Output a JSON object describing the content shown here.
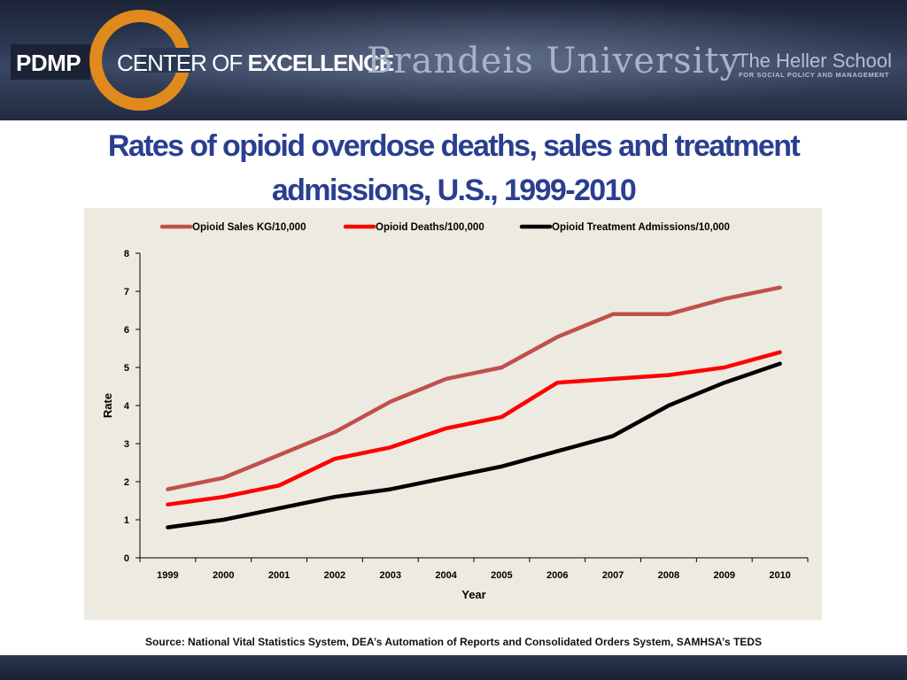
{
  "header": {
    "pdmp": "PDMP",
    "center_of": "CENTER OF ",
    "excellence": "EXCELLENCE",
    "university": "Brandeis University",
    "school": "The Heller School",
    "school_sub": "FOR SOCIAL POLICY AND MANAGEMENT",
    "logo_color": "#e08a1e"
  },
  "title": "Rates of opioid overdose deaths, sales and treatment admissions,  U.S., 1999-2010",
  "source": "Source:  National Vital Statistics System, DEA’s Automation of Reports and Consolidated Orders System, SAMHSA’s TEDS",
  "chart_data": {
    "type": "line",
    "title": "",
    "xlabel": "Year",
    "ylabel": "Rate",
    "ylim": [
      0,
      8
    ],
    "yticks": [
      0,
      1,
      2,
      3,
      4,
      5,
      6,
      7,
      8
    ],
    "grid": false,
    "legend_position": "top",
    "categories": [
      "1999",
      "2000",
      "2001",
      "2002",
      "2003",
      "2004",
      "2005",
      "2006",
      "2007",
      "2008",
      "2009",
      "2010"
    ],
    "series": [
      {
        "name": "Opioid Sales KG/10,000",
        "color": "#c0504d",
        "values": [
          1.8,
          2.1,
          2.7,
          3.3,
          4.1,
          4.7,
          5.0,
          5.8,
          6.4,
          6.4,
          6.8,
          7.1
        ]
      },
      {
        "name": "Opioid Deaths/100,000",
        "color": "#ff0000",
        "values": [
          1.4,
          1.6,
          1.9,
          2.6,
          2.9,
          3.4,
          3.7,
          4.6,
          4.7,
          4.8,
          5.0,
          5.4
        ]
      },
      {
        "name": "Opioid Treatment Admissions/10,000",
        "color": "#000000",
        "values": [
          0.8,
          1.0,
          1.3,
          1.6,
          1.8,
          2.1,
          2.4,
          2.8,
          3.2,
          4.0,
          4.6,
          5.1
        ]
      }
    ]
  }
}
